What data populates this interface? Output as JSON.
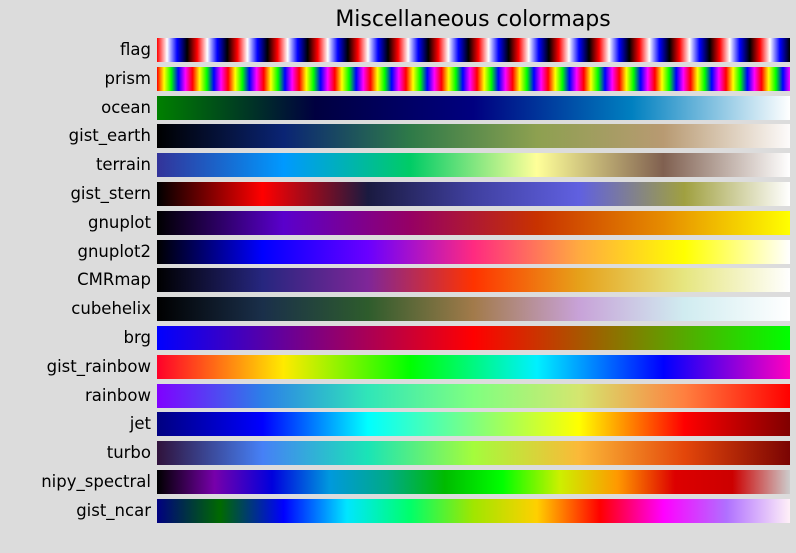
{
  "chart_data": {
    "type": "heatmap",
    "title": "Miscellaneous colormaps",
    "colormaps": [
      {
        "name": "flag",
        "colors": [
          "#ff0000",
          "#ffffff",
          "#0000ff",
          "#000000"
        ],
        "repeat": 16
      },
      {
        "name": "prism",
        "colors": [
          "#ff0000",
          "#ffff00",
          "#00ff00",
          "#0000ff",
          "#ff00ff"
        ],
        "repeat": 18
      },
      {
        "name": "ocean",
        "colors": [
          "#008000",
          "#000040",
          "#000080",
          "#0080c0",
          "#ffffff"
        ]
      },
      {
        "name": "gist_earth",
        "colors": [
          "#000000",
          "#0a2474",
          "#2e7a48",
          "#8da050",
          "#b89a72",
          "#fdfbfb"
        ]
      },
      {
        "name": "terrain",
        "colors": [
          "#333399",
          "#0099ff",
          "#00cc66",
          "#ffff99",
          "#806050",
          "#ffffff"
        ]
      },
      {
        "name": "gist_stern",
        "colors": [
          "#000000",
          "#ff0000",
          "#1a1a40",
          "#4040a0",
          "#6060e0",
          "#a0a040",
          "#ffffff"
        ]
      },
      {
        "name": "gnuplot",
        "colors": [
          "#000000",
          "#5a00cc",
          "#960064",
          "#c83200",
          "#e68c00",
          "#ffff00"
        ]
      },
      {
        "name": "gnuplot2",
        "colors": [
          "#000000",
          "#0000ff",
          "#6a00ff",
          "#ff2a80",
          "#ffaa40",
          "#ffff00",
          "#ffffff"
        ]
      },
      {
        "name": "CMRmap",
        "colors": [
          "#000000",
          "#26267f",
          "#7f2698",
          "#ff3300",
          "#e6a11a",
          "#e6e680",
          "#ffffff"
        ]
      },
      {
        "name": "cubehelix",
        "colors": [
          "#000000",
          "#1a2f4a",
          "#2e5c2c",
          "#a27a4a",
          "#c8a2d8",
          "#d0ecf0",
          "#ffffff"
        ]
      },
      {
        "name": "brg",
        "colors": [
          "#0000ff",
          "#ff0000",
          "#00ff00"
        ]
      },
      {
        "name": "gist_rainbow",
        "colors": [
          "#ff0029",
          "#ffea00",
          "#00ff00",
          "#00f0ff",
          "#0000ff",
          "#ff00bf"
        ]
      },
      {
        "name": "rainbow",
        "colors": [
          "#8000ff",
          "#2c7fe8",
          "#30e6b8",
          "#80ff80",
          "#d4e66f",
          "#ff7f3f",
          "#ff0000"
        ]
      },
      {
        "name": "jet",
        "colors": [
          "#000080",
          "#0000ff",
          "#00ffff",
          "#7fff7f",
          "#ffff00",
          "#ff0000",
          "#800000"
        ]
      },
      {
        "name": "turbo",
        "colors": [
          "#30123b",
          "#4680f6",
          "#1ae4b6",
          "#a4fc3c",
          "#fbb938",
          "#e4460a",
          "#7a0403"
        ]
      },
      {
        "name": "nipy_spectral",
        "colors": [
          "#000000",
          "#7700aa",
          "#0000dd",
          "#0099dd",
          "#00aa88",
          "#00bb00",
          "#00ff00",
          "#ccf000",
          "#ff9900",
          "#dd0000",
          "#cc0000",
          "#cccccc"
        ]
      },
      {
        "name": "gist_ncar",
        "colors": [
          "#000080",
          "#006a00",
          "#0000ff",
          "#00e6ff",
          "#00ff6a",
          "#a0e600",
          "#ffd000",
          "#ff0000",
          "#ff00ff",
          "#b070ff",
          "#fff0f8"
        ]
      }
    ]
  }
}
